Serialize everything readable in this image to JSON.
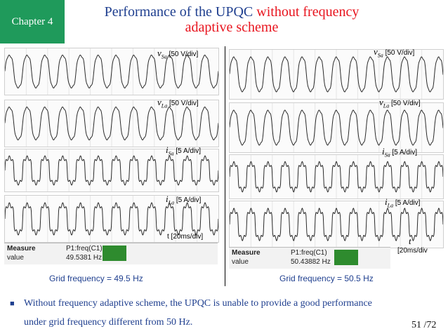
{
  "header": {
    "chapter": "Chapter 4",
    "title_main": "Performance of the UPQC ",
    "title_highlight_1": "without frequency",
    "title_highlight_2": "adaptive scheme",
    "title_color": "#1f3f8f",
    "highlight_color": "#e8141e",
    "chapter_bg": "#1f9a5b"
  },
  "left_panel": {
    "traces": [
      {
        "symbol": "v",
        "sub": "Sa",
        "scale": "[50 V/div]"
      },
      {
        "symbol": "v",
        "sub": "La",
        "scale": "[50 V/div]"
      },
      {
        "symbol": "i",
        "sub": "Sa",
        "scale": "[5 A/div]"
      },
      {
        "symbol": "i",
        "sub": "La",
        "scale": "[5 A/div]"
      }
    ],
    "time_label": "t [20ms/div]",
    "measure_label": "Measure",
    "value_label": "value",
    "param": "P1:freq(C1)",
    "reading": "49.5381 Hz",
    "grid_frequency": "Grid frequency = 49.5 Hz"
  },
  "right_panel": {
    "traces": [
      {
        "symbol": "v",
        "sub": "Sa",
        "scale": "[50 V/div]"
      },
      {
        "symbol": "v",
        "sub": "La",
        "scale": "[50 V/div]"
      },
      {
        "symbol": "i",
        "sub": "Sa",
        "scale": "[5 A/div]"
      },
      {
        "symbol": "i",
        "sub": "La",
        "scale": "[5 A/div]"
      }
    ],
    "time_symbol": "t",
    "time_scale": "[20ms/div",
    "measure_label": "Measure",
    "value_label": "value",
    "param": "P1:freq(C1)",
    "reading": "50.43882 Hz",
    "grid_frequency": "Grid frequency = 50.5 Hz"
  },
  "footer": {
    "note_line1": "Without frequency adaptive scheme, the UPQC is unable to provide a good performance",
    "note_line2": "under grid frequency different from 50 Hz.",
    "page": "51 /72"
  }
}
